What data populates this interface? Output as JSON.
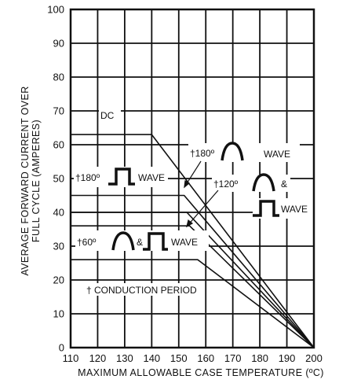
{
  "chart_data": {
    "type": "line",
    "xlabel": "MAXIMUM ALLOWABLE CASE TEMPERATURE (ºC)",
    "ylabel_lines": [
      "AVERAGE FORWARD CURRENT OVER",
      "FULL CYCLE (AMPERES)"
    ],
    "xlim": [
      110,
      200
    ],
    "ylim": [
      0,
      100
    ],
    "x_ticks": [
      110,
      120,
      130,
      140,
      150,
      160,
      170,
      180,
      190,
      200
    ],
    "y_ticks": [
      0,
      10,
      20,
      30,
      40,
      50,
      60,
      70,
      80,
      90,
      100
    ],
    "grid": true,
    "series": [
      {
        "name": "DC",
        "x": [
          110,
          140,
          200
        ],
        "y": [
          63,
          63,
          0
        ]
      },
      {
        "name": "†180º sine wave",
        "x": [
          110,
          152,
          200
        ],
        "y": [
          45,
          45,
          0
        ]
      },
      {
        "name": "†120º sine & square wave",
        "x": [
          110,
          153,
          200
        ],
        "y": [
          40,
          40,
          0
        ]
      },
      {
        "name": "†180º square wave",
        "x": [
          110,
          154,
          200
        ],
        "y": [
          36,
          36,
          0
        ]
      },
      {
        "name": "†60º sine & square wave",
        "x": [
          110,
          157,
          200
        ],
        "y": [
          26,
          26,
          0
        ]
      }
    ],
    "annotations": {
      "dc": "DC",
      "sine180_prefix": "†180º",
      "sine180_suffix": "WAVE",
      "square180_prefix": "†180º",
      "square180_suffix": "WAVE",
      "s120_prefix": "†120º",
      "s120_amp": "&",
      "s120_wave": "WAVE",
      "s60_prefix": "†60º",
      "s60_amp": "&",
      "s60_wave": "WAVE",
      "conduction": "† CONDUCTION PERIOD"
    }
  }
}
